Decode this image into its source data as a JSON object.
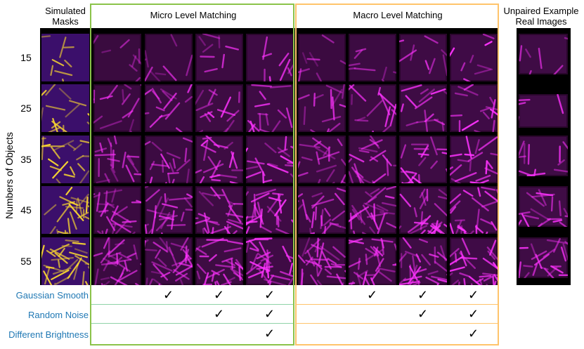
{
  "headers": {
    "masks": [
      "Simulated",
      "Masks"
    ],
    "micro": "Micro Level Matching",
    "macro": "Macro Level Matching",
    "real": [
      "Unpaired Example",
      "Real Images"
    ]
  },
  "ylabel": "Numbers of Objects",
  "rows": [
    "15",
    "25",
    "35",
    "45",
    "55"
  ],
  "options": [
    "Gaussian Smooth",
    "Random Noise",
    "Different Brightness"
  ],
  "check_glyph": "✓",
  "checks": {
    "micro": [
      [
        false,
        true,
        true,
        true
      ],
      [
        false,
        false,
        true,
        true
      ],
      [
        false,
        false,
        false,
        true
      ]
    ],
    "macro": [
      [
        false,
        true,
        true,
        true
      ],
      [
        false,
        false,
        true,
        true
      ],
      [
        false,
        false,
        false,
        true
      ]
    ]
  },
  "colors": {
    "micro_frame": "#8bc34a",
    "macro_frame": "#ffc46b",
    "option_text": "#1f78b4",
    "mask_bg": "#3b0f6b",
    "mask_fg": "#f7d531",
    "cell_fg": "#ff33ff"
  },
  "counts": [
    15,
    25,
    35,
    45,
    55
  ]
}
